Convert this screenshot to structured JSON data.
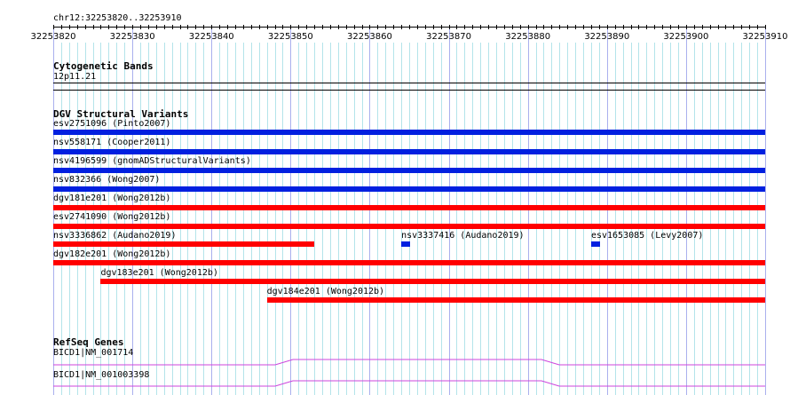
{
  "ruler": {
    "location": "chr12:32253820..32253910",
    "ticks": [
      "32253820",
      "32253830",
      "32253840",
      "32253850",
      "32253860",
      "32253870",
      "32253880",
      "32253890",
      "32253900",
      "32253910"
    ]
  },
  "tracks": {
    "cytoband": {
      "title": "Cytogenetic Bands",
      "band": "12p11.21"
    },
    "dgv": {
      "title": "DGV Structural Variants",
      "colors": {
        "blue": "#0020e0",
        "red": "#ff0000"
      },
      "features": [
        {
          "label": "esv2751096 (Pinto2007)",
          "color": "blue",
          "start": 32253820,
          "end": 32253910
        },
        {
          "label": "nsv558171 (Cooper2011)",
          "color": "blue",
          "start": 32253820,
          "end": 32253910
        },
        {
          "label": "nsv4196599 (gnomADStructuralVariants)",
          "color": "blue",
          "start": 32253820,
          "end": 32253910
        },
        {
          "label": "nsv832366 (Wong2007)",
          "color": "blue",
          "start": 32253820,
          "end": 32253910
        },
        {
          "label": "dgv181e201 (Wong2012b)",
          "color": "red",
          "start": 32253820,
          "end": 32253910
        },
        {
          "label": "esv2741090 (Wong2012b)",
          "color": "red",
          "start": 32253820,
          "end": 32253910
        },
        {
          "label": "nsv3336862 (Audano2019)",
          "color": "red",
          "start": 32253820,
          "end": 32253853
        },
        {
          "label": "nsv3337416 (Audano2019)",
          "color": "blue",
          "start": 32253864,
          "end": 32253865
        },
        {
          "label": "esv1653085 (Levy2007)",
          "color": "blue",
          "start": 32253888,
          "end": 32253889
        },
        {
          "label": "dgv182e201 (Wong2012b)",
          "color": "red",
          "start": 32253820,
          "end": 32253910
        },
        {
          "label": "dgv183e201 (Wong2012b)",
          "color": "red",
          "start": 32253826,
          "end": 32253910
        },
        {
          "label": "dgv184e201 (Wong2012b)",
          "color": "red",
          "start": 32253847,
          "end": 32253910
        }
      ]
    },
    "refseq": {
      "title": "RefSeq Genes",
      "color": "#cc44dd",
      "genes": [
        {
          "label": "BICD1|NM_001714"
        },
        {
          "label": "BICD1|NM_001003398"
        }
      ]
    }
  }
}
